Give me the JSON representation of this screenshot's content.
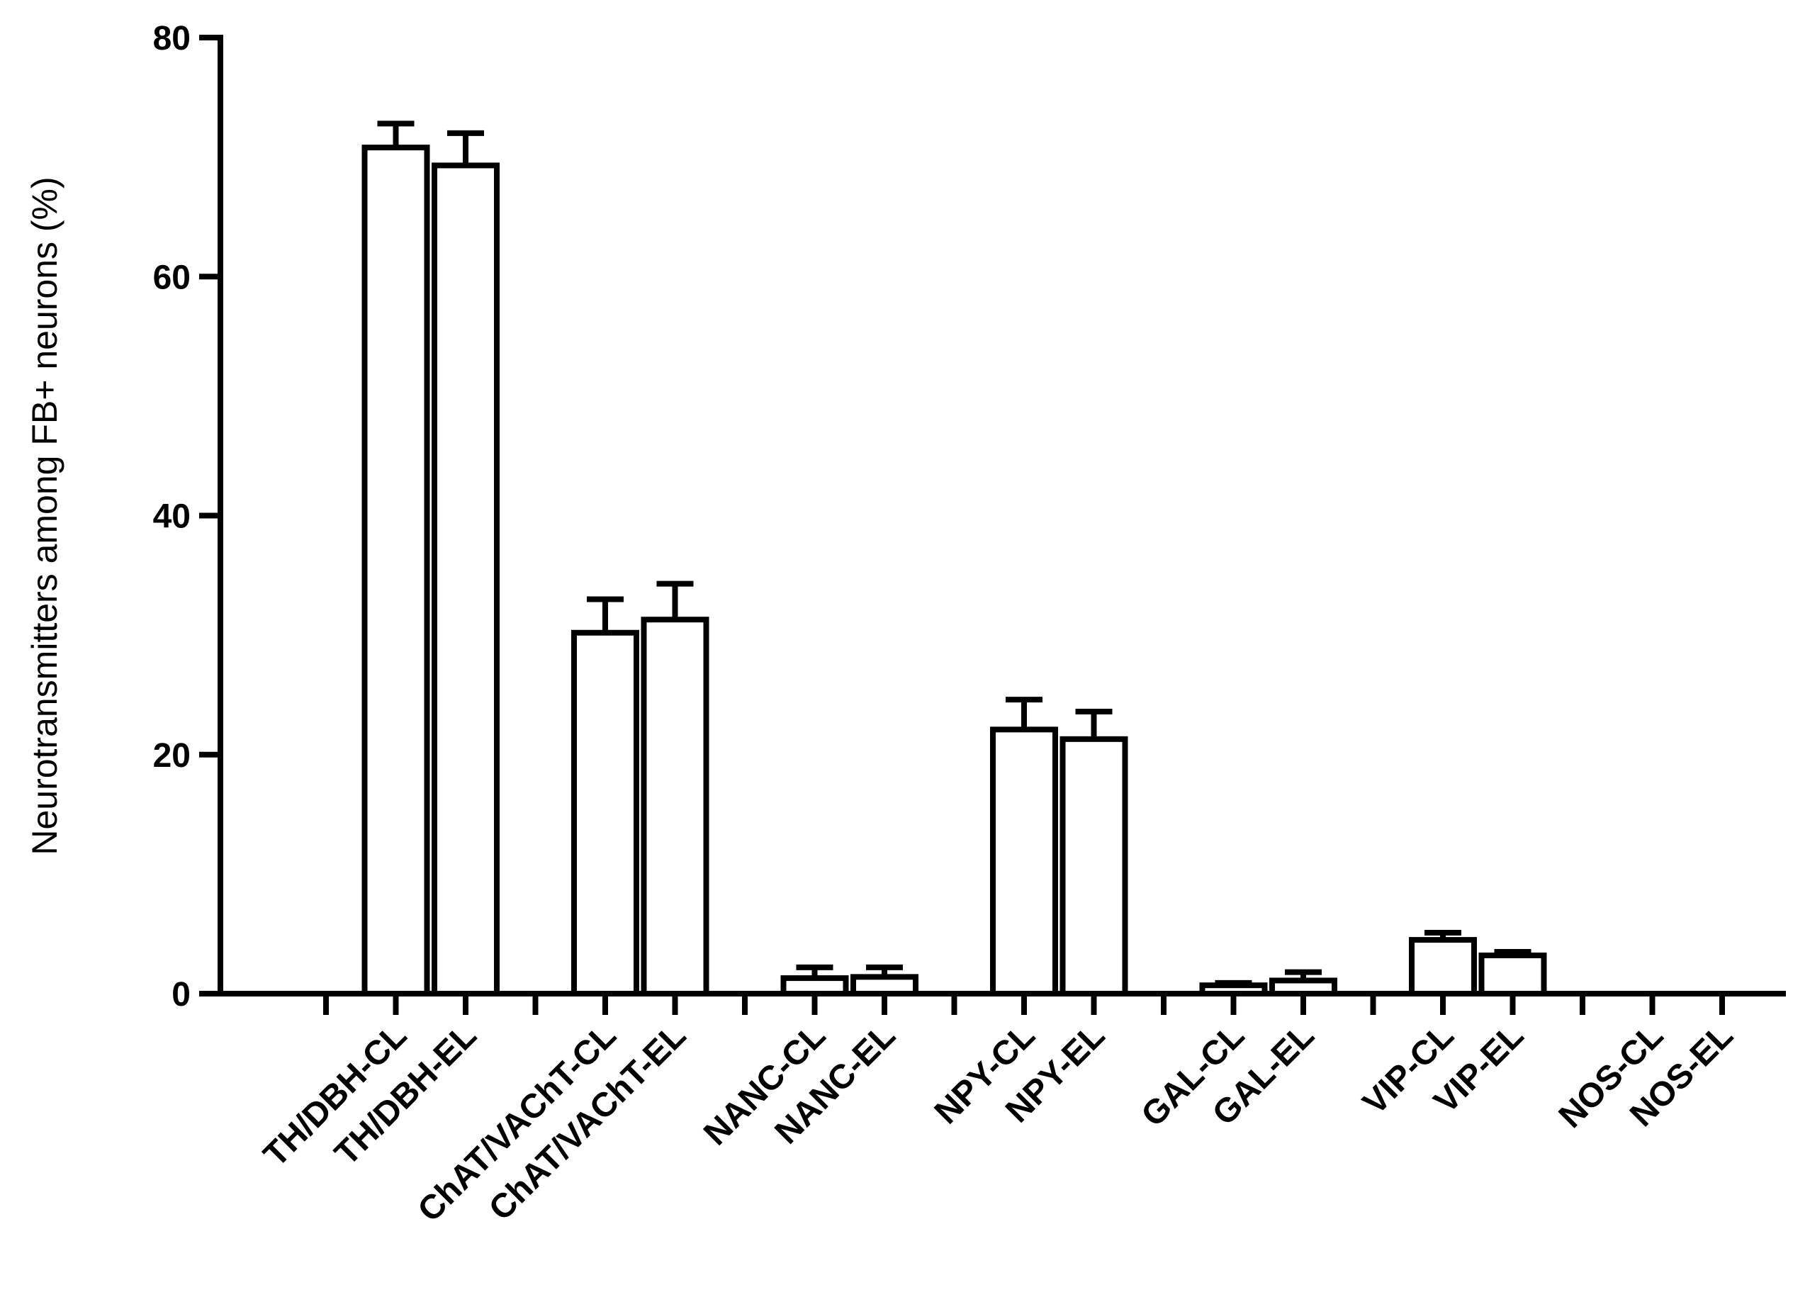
{
  "chart_data": {
    "type": "bar",
    "title": "",
    "xlabel": "",
    "ylabel": "Neurotransmitters among FB+ neurons (%)",
    "ylim": [
      0,
      80
    ],
    "yticks": [
      "0",
      "20",
      "40",
      "60",
      "80"
    ],
    "grid": false,
    "legend": "none",
    "bar_fill": "#ffffff",
    "bar_stroke": "#000000",
    "error_bars": "upper",
    "groups": [
      "TH/DBH",
      "ChAT/VAChT",
      "NANC",
      "NPY",
      "GAL",
      "VIP",
      "NOS"
    ],
    "categories": [
      "TH/DBH-CL",
      "TH/DBH-EL",
      "ChAT/VAChT-CL",
      "ChAT/VAChT-EL",
      "NANC-CL",
      "NANC-EL",
      "NPY-CL",
      "NPY-EL",
      "GAL-CL",
      "GAL-EL",
      "VIP-CL",
      "VIP-EL",
      "NOS-CL",
      "NOS-EL"
    ],
    "values": [
      70.8,
      69.3,
      30.2,
      31.3,
      1.3,
      1.4,
      22.1,
      21.3,
      0.7,
      1.1,
      4.5,
      3.2,
      0,
      0
    ],
    "errors": [
      2.0,
      2.7,
      2.8,
      3.0,
      0.9,
      0.8,
      2.5,
      2.3,
      0.2,
      0.7,
      0.6,
      0.3,
      0,
      0
    ]
  }
}
